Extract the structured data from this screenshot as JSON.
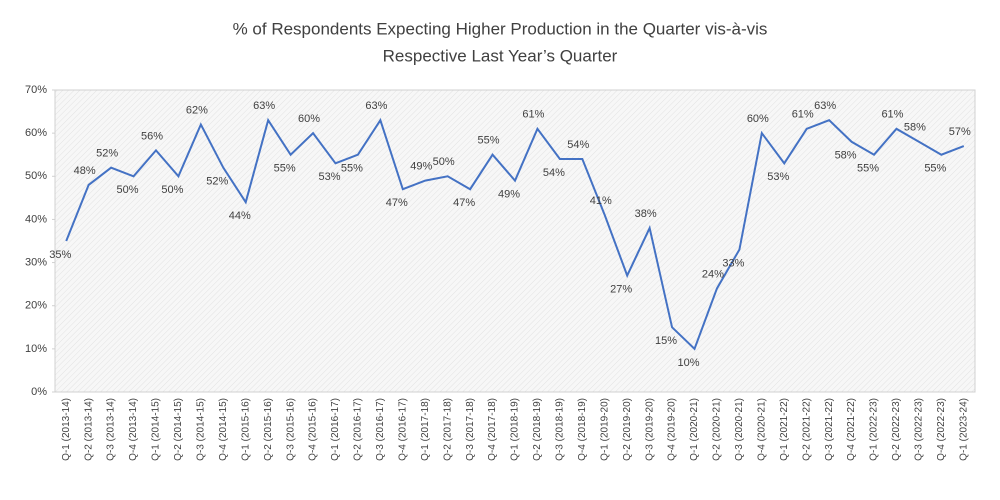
{
  "chart_data": {
    "type": "line",
    "title": [
      "% of Respondents Expecting Higher Production in the Quarter  vis-à-vis",
      "Respective Last Year’s Quarter"
    ],
    "categories": [
      "Q-1 (2013-14)",
      "Q-2 (2013-14)",
      "Q-3 (2013-14)",
      "Q-4 (2013-14)",
      "Q-1 (2014-15)",
      "Q-2 (2014-15)",
      "Q-3 (2014-15)",
      "Q-4 (2014-15)",
      "Q-1 (2015-16)",
      "Q-2 (2015-16)",
      "Q-3 (2015-16)",
      "Q-4 (2015-16)",
      "Q-1 (2016-17)",
      "Q-2 (2016-17)",
      "Q-3 (2016-17)",
      "Q-4 (2016-17)",
      "Q-1 (2017-18)",
      "Q-2 (2017-18)",
      "Q-3 (2017-18)",
      "Q-4 (2017-18)",
      "Q-1 (2018-19)",
      "Q-2 (2018-19)",
      "Q-3 (2018-19)",
      "Q-4 (2018-19)",
      "Q-1 (2019-20)",
      "Q-2 (2019-20)",
      "Q-3 (2019-20)",
      "Q-4 (2019-20)",
      "Q-1 (2020-21)",
      "Q-2 (2020-21)",
      "Q-3 (2020-21)",
      "Q-4 (2020-21)",
      "Q-1 (2021-22)",
      "Q-2 (2021-22)",
      "Q-3 (2021-22)",
      "Q-4 (2021-22)",
      "Q-1 (2022-23)",
      "Q-2 (2022-23)",
      "Q-3 (2022-23)",
      "Q-4 (2022-23)",
      "Q-1 (2023-24)"
    ],
    "values": [
      35,
      48,
      52,
      50,
      56,
      50,
      62,
      52,
      44,
      63,
      55,
      60,
      53,
      55,
      63,
      47,
      49,
      50,
      47,
      55,
      49,
      61,
      54,
      54,
      41,
      27,
      38,
      15,
      10,
      24,
      33,
      60,
      53,
      61,
      63,
      58,
      55,
      61,
      58,
      55,
      57
    ],
    "value_labels": [
      "35%",
      "48%",
      "52%",
      "50%",
      "56%",
      "50%",
      "62%",
      "52%",
      "44%",
      "63%",
      "55%",
      "60%",
      "53%",
      "55%",
      "63%",
      "47%",
      "49%",
      "50%",
      "47%",
      "55%",
      "49%",
      "61%",
      "54%",
      "54%",
      "41%",
      "27%",
      "38%",
      "15%",
      "10%",
      "24%",
      "33%",
      "60%",
      "53%",
      "61%",
      "63%",
      "58%",
      "55%",
      "61%",
      "58%",
      "55%",
      "57%"
    ],
    "color": "#4472c4",
    "ylim": [
      0,
      70
    ],
    "yticks": [
      {
        "value": 0,
        "label": "0%"
      },
      {
        "value": 10,
        "label": "10%"
      },
      {
        "value": 20,
        "label": "20%"
      },
      {
        "value": 30,
        "label": "30%"
      },
      {
        "value": 40,
        "label": "40%"
      },
      {
        "value": 50,
        "label": "50%"
      },
      {
        "value": 60,
        "label": "60%"
      },
      {
        "value": 70,
        "label": "70%"
      }
    ],
    "grid": false
  }
}
